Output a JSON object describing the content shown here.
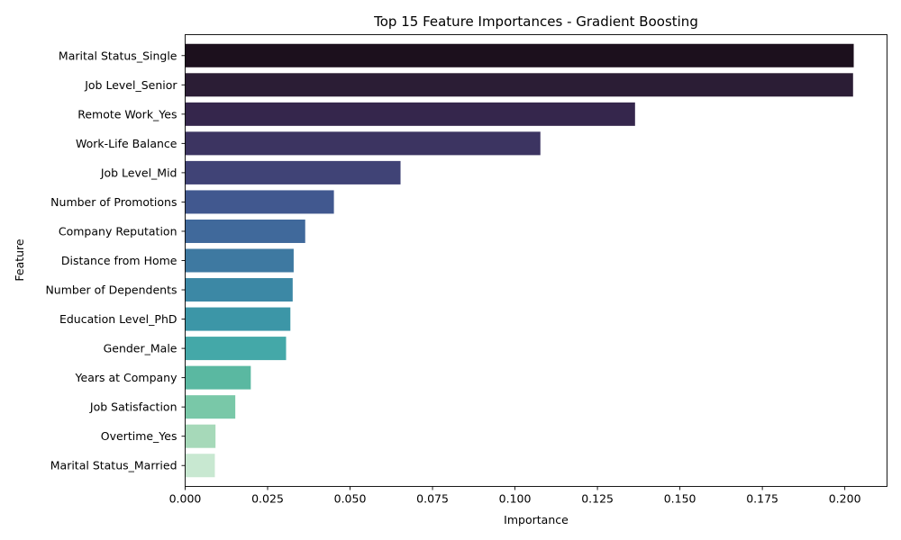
{
  "chart_data": {
    "type": "bar",
    "orientation": "horizontal",
    "title": "Top 15 Feature Importances - Gradient Boosting",
    "xlabel": "Importance",
    "ylabel": "Feature",
    "xlim": [
      0,
      0.2128
    ],
    "xticks": [
      0.0,
      0.025,
      0.05,
      0.075,
      0.1,
      0.125,
      0.15,
      0.175,
      0.2
    ],
    "xtick_labels": [
      "0.000",
      "0.025",
      "0.050",
      "0.075",
      "0.100",
      "0.125",
      "0.150",
      "0.175",
      "0.200"
    ],
    "grid": false,
    "categories": [
      "Marital Status_Single",
      "Job Level_Senior",
      "Remote Work_Yes",
      "Work-Life Balance",
      "Job Level_Mid",
      "Number of Promotions",
      "Company Reputation",
      "Distance from Home",
      "Number of Dependents",
      "Education Level_PhD",
      "Gender_Male",
      "Years at Company",
      "Job Satisfaction",
      "Overtime_Yes",
      "Marital Status_Married"
    ],
    "values": [
      0.2027,
      0.2025,
      0.1364,
      0.1077,
      0.0653,
      0.0451,
      0.0364,
      0.0329,
      0.0326,
      0.0319,
      0.0306,
      0.0199,
      0.0152,
      0.0092,
      0.009
    ],
    "colors": [
      "#1c101d",
      "#2b1d35",
      "#35264c",
      "#3c3461",
      "#404376",
      "#41588f",
      "#40699b",
      "#3e79a1",
      "#3c88a5",
      "#3c96a7",
      "#44a8a8",
      "#5ab8a1",
      "#79c8a8",
      "#a6d9b9",
      "#c8e8d1"
    ]
  }
}
